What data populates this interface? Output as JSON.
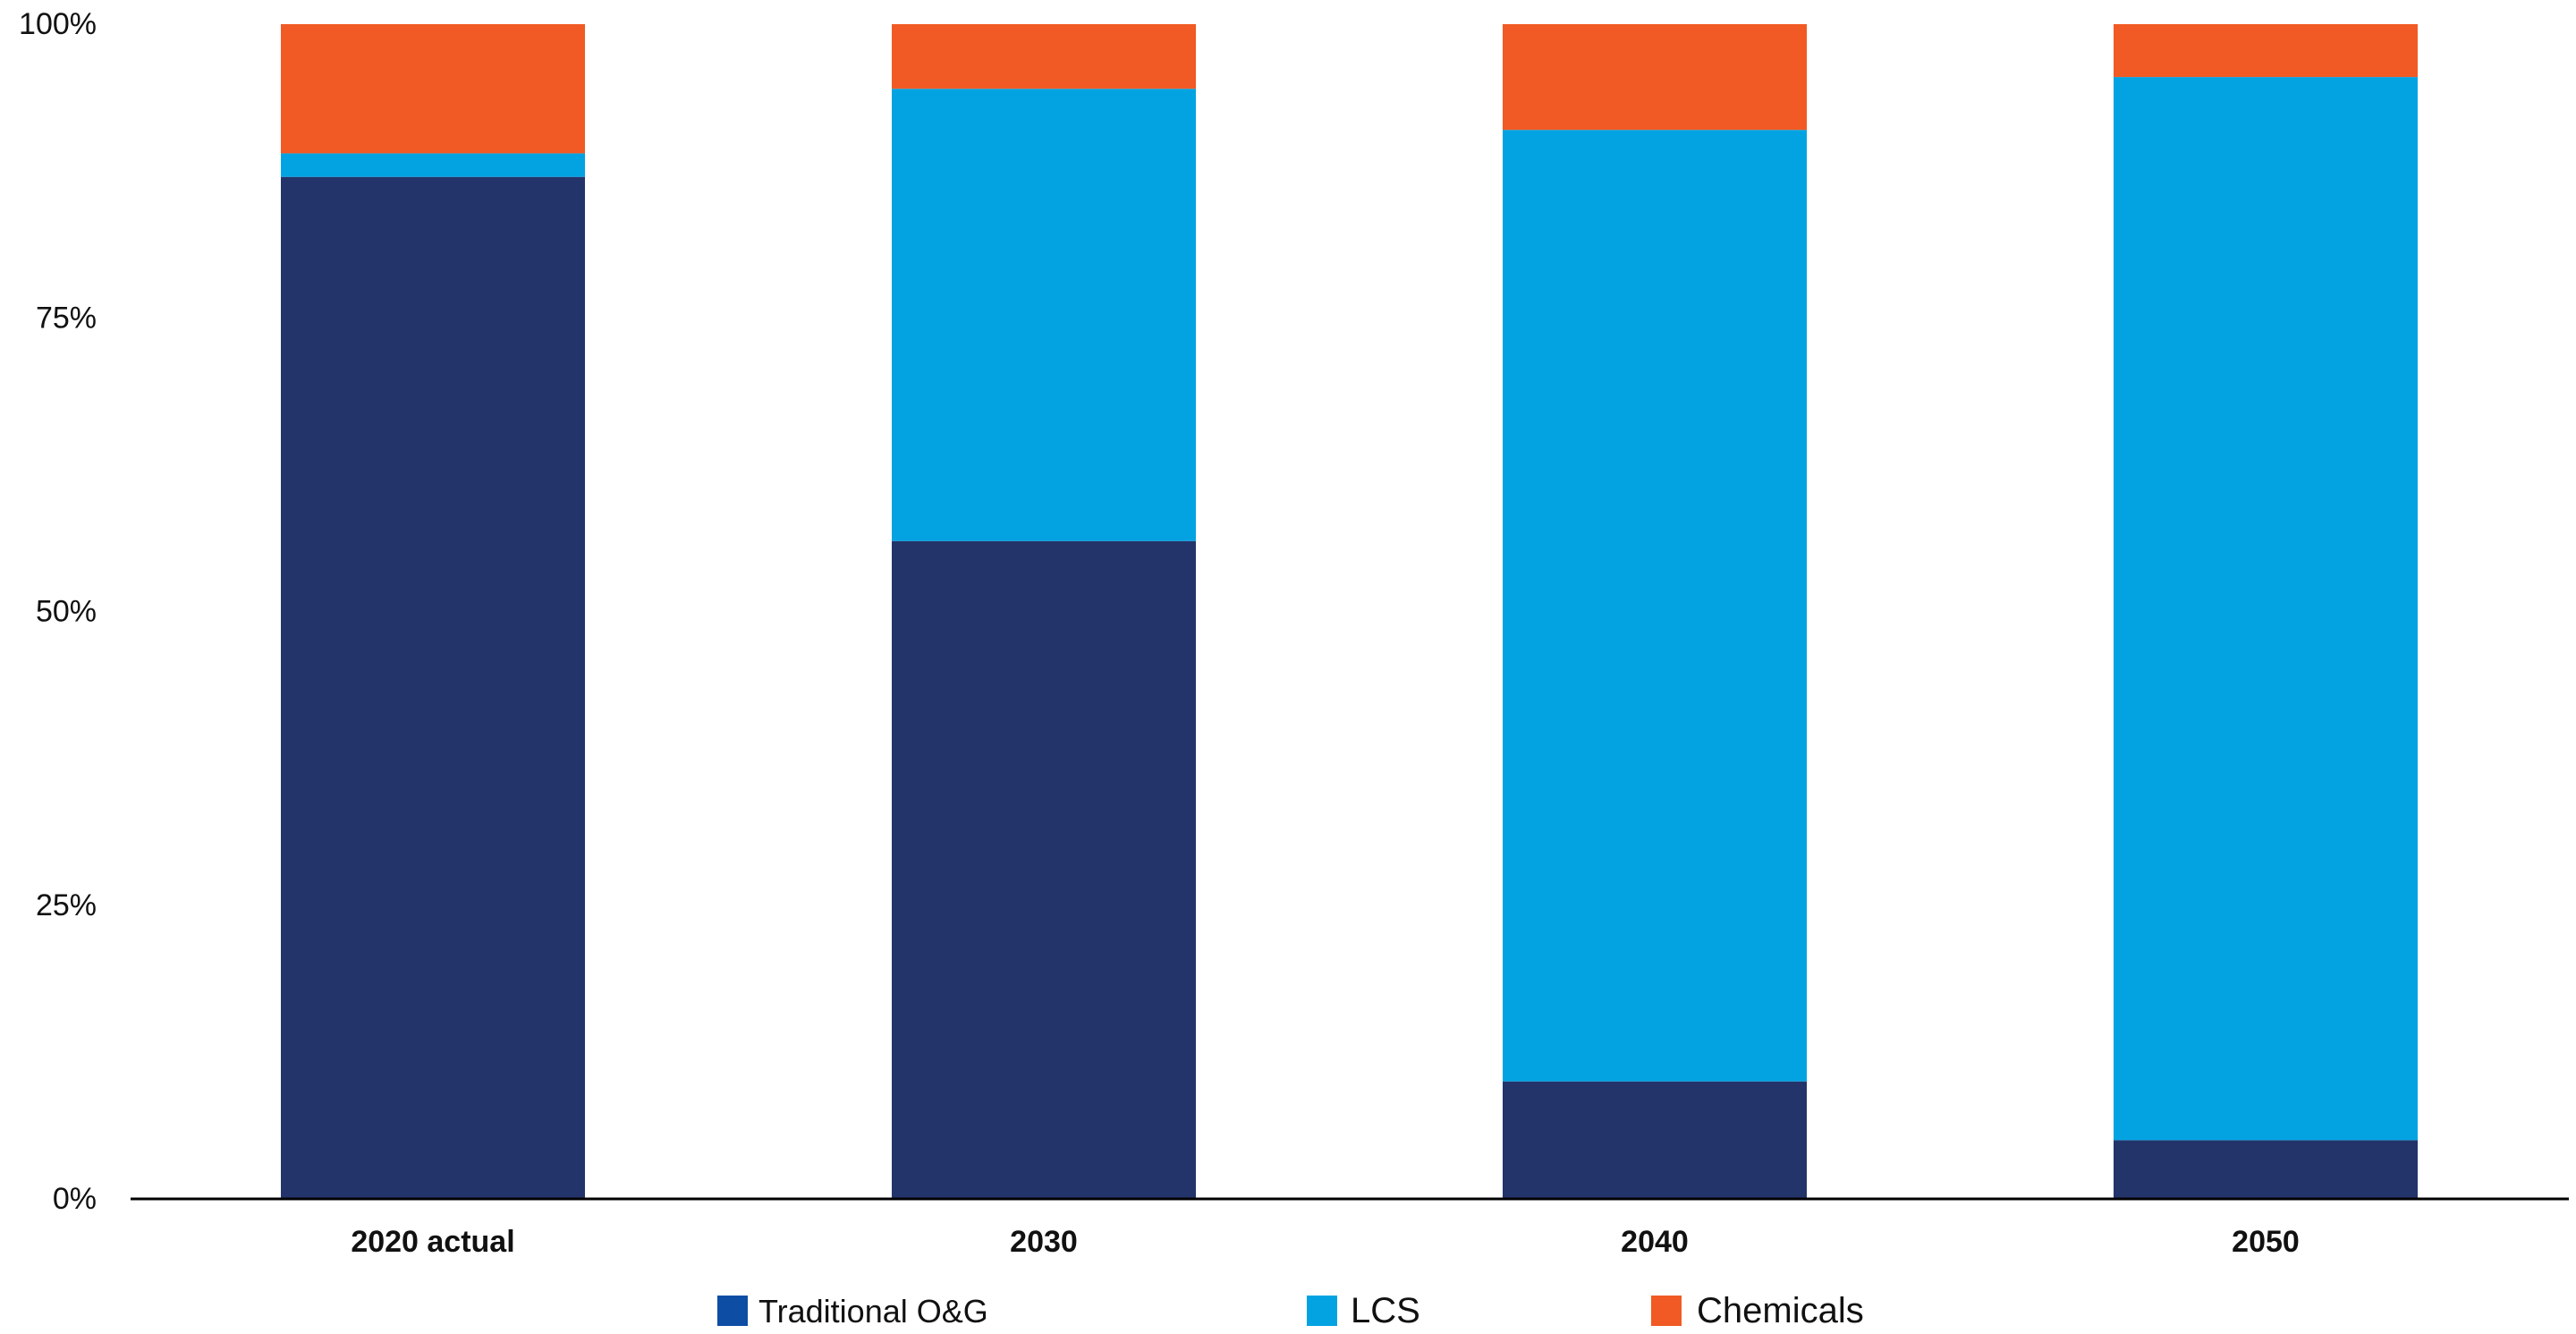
{
  "chart_data": {
    "type": "bar",
    "stacked": true,
    "categories": [
      "2020 actual",
      "2030",
      "2040",
      "2050"
    ],
    "series": [
      {
        "name": "Traditional O&G",
        "color": "#23346A",
        "legend_color": "#0E4DA4",
        "values": [
          87,
          56,
          10,
          5
        ]
      },
      {
        "name": "LCS",
        "color": "#03A3E2",
        "values": [
          2,
          38.5,
          81,
          90.5
        ]
      },
      {
        "name": "Chemicals",
        "color": "#F15A24",
        "values": [
          11,
          5.5,
          9,
          4.5
        ]
      }
    ],
    "yticks": [
      "0%",
      "25%",
      "50%",
      "75%",
      "100%"
    ],
    "ylim": [
      0,
      100
    ],
    "y_unit": "%",
    "grid": false,
    "legend_position": "bottom",
    "axis_color": "#000000"
  }
}
